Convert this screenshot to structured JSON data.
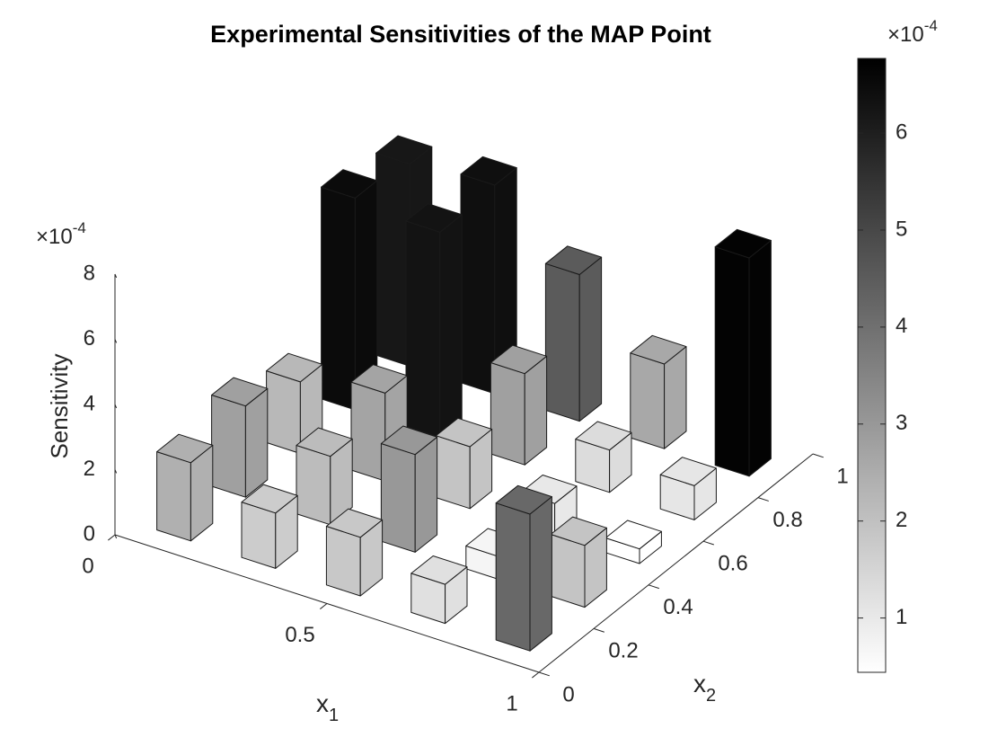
{
  "chart_data": {
    "type": "bar3d",
    "title": "Experimental Sensitivities of the MAP Point",
    "xlabel": {
      "text": "x",
      "sub": "1"
    },
    "ylabel": {
      "text": "x",
      "sub": "2"
    },
    "zlabel": "Sensitivity",
    "z_multiplier": {
      "base": "×10",
      "exponent": "-4"
    },
    "x": [
      0.1,
      0.1,
      0.1,
      0.1,
      0.1,
      0.3,
      0.3,
      0.3,
      0.3,
      0.3,
      0.5,
      0.5,
      0.5,
      0.5,
      0.5,
      0.7,
      0.7,
      0.7,
      0.7,
      0.7,
      0.9,
      0.9,
      0.9,
      0.9,
      0.9
    ],
    "y": [
      0.1,
      0.3,
      0.5,
      0.7,
      0.9,
      0.1,
      0.3,
      0.5,
      0.7,
      0.9,
      0.1,
      0.3,
      0.5,
      0.7,
      0.9,
      0.1,
      0.3,
      0.5,
      0.7,
      0.9,
      0.1,
      0.3,
      0.5,
      0.7,
      0.9
    ],
    "values": [
      2.4,
      2.8,
      2.2,
      6.5,
      6.2,
      1.7,
      2.1,
      2.7,
      6.3,
      6.4,
      1.8,
      3.0,
      1.9,
      2.8,
      4.5,
      1.2,
      0.7,
      1.0,
      1.3,
      2.6,
      4.2,
      1.9,
      0.45,
      1.05,
      6.7
    ],
    "xlim": [
      0,
      1
    ],
    "xticks": [
      0,
      0.5,
      1
    ],
    "ylim": [
      0,
      1
    ],
    "yticks": [
      0,
      0.2,
      0.4,
      0.6,
      0.8,
      1
    ],
    "zlim": [
      0,
      8
    ],
    "zticks": [
      0,
      2,
      4,
      6,
      8
    ],
    "colormap": "gray-reversed",
    "colorbar": {
      "clim": [
        0.44,
        6.77
      ],
      "ticks": [
        1,
        2,
        3,
        4,
        5,
        6
      ],
      "multiplier": {
        "base": "×10",
        "exponent": "-4"
      }
    }
  }
}
